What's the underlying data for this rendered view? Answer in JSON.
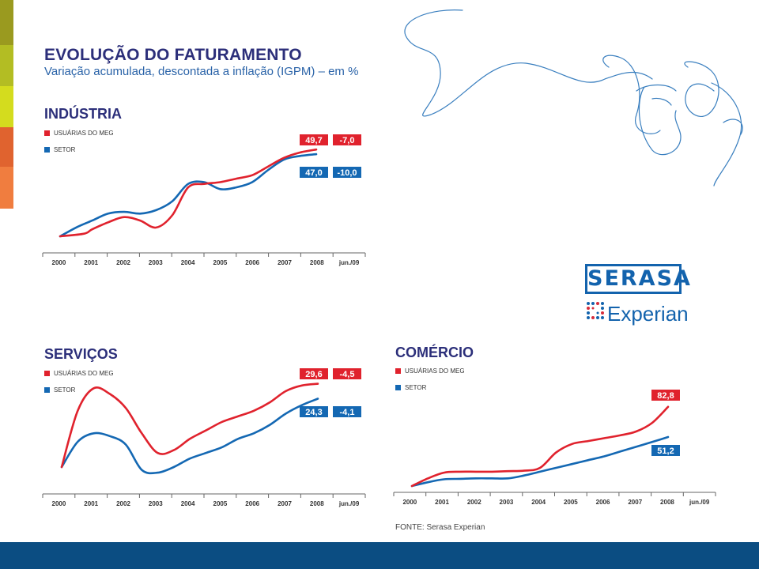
{
  "title": "EVOLUÇÃO DO FATURAMENTO",
  "subtitle": "Variação acumulada, descontada a inflação (IGPM) – em %",
  "source": "FONTE: Serasa Experian",
  "logo": {
    "brand_top": "SERASA",
    "brand_bottom": "Experian"
  },
  "colors": {
    "red": "#e0222d",
    "blue": "#1468b3",
    "title": "#2c2f7a",
    "subtitle": "#2a63a8",
    "footer": "#0b4d82"
  },
  "stripe_colors": [
    "#9a9a1f",
    "#b3bd23",
    "#d4dc1e",
    "#e0632f",
    "#f07d3f"
  ],
  "chart_data": [
    {
      "id": "industria",
      "type": "line",
      "title": "INDÚSTRIA",
      "categories": [
        "2000",
        "2001",
        "2002",
        "2003",
        "2004",
        "2005",
        "2006",
        "2007",
        "2008",
        "jun./09"
      ],
      "series": [
        {
          "name": "USUÁRIAS DO MEG",
          "color": "#e0222d",
          "x": [
            2000,
            2000.75,
            2001,
            2001.5,
            2002,
            2002.5,
            2003,
            2003.5,
            2004,
            2004.5,
            2005,
            2005.5,
            2006,
            2006.5,
            2007,
            2007.5,
            2008
          ],
          "values": [
            0,
            1.5,
            4,
            8,
            11,
            9,
            5,
            12,
            28,
            30,
            31,
            33,
            35,
            40,
            45,
            48,
            49.7
          ],
          "label": "49,7",
          "change": "-7,0"
        },
        {
          "name": "SETOR",
          "color": "#1468b3",
          "x": [
            2000,
            2000.5,
            2001,
            2001.5,
            2002,
            2002.5,
            2003,
            2003.5,
            2004,
            2004.5,
            2005,
            2005.5,
            2006,
            2006.5,
            2007,
            2007.5,
            2008
          ],
          "values": [
            0,
            5,
            9,
            13,
            14,
            13,
            15,
            20,
            30,
            31,
            27,
            28,
            31,
            38,
            44,
            46,
            47.0
          ],
          "label": "47,0",
          "change": "-10,0"
        }
      ]
    },
    {
      "id": "servicos",
      "type": "line",
      "title": "SERVIÇOS",
      "categories": [
        "2000",
        "2001",
        "2002",
        "2003",
        "2004",
        "2005",
        "2006",
        "2007",
        "2008",
        "jun./09"
      ],
      "series": [
        {
          "name": "USUÁRIAS DO MEG",
          "color": "#e0222d",
          "x": [
            2000,
            2000.5,
            2001,
            2001.5,
            2002,
            2002.5,
            2003,
            2003.5,
            2004,
            2004.5,
            2005,
            2005.5,
            2006,
            2006.5,
            2007,
            2007.5,
            2008
          ],
          "values": [
            0,
            20,
            28,
            26,
            21,
            12,
            5,
            6,
            10,
            13,
            16,
            18,
            20,
            23,
            27,
            29,
            29.6
          ],
          "label": "29,6",
          "change": "-4,5"
        },
        {
          "name": "SETOR",
          "color": "#1468b3",
          "x": [
            2000,
            2000.5,
            2001,
            2001.5,
            2002,
            2002.5,
            2003,
            2003.5,
            2004,
            2004.5,
            2005,
            2005.5,
            2006,
            2006.5,
            2007,
            2007.5,
            2008
          ],
          "values": [
            0,
            9,
            12,
            11,
            8,
            -1,
            -2,
            0,
            3,
            5,
            7,
            10,
            12,
            15,
            19,
            22,
            24.3
          ],
          "label": "24,3",
          "change": "-4,1"
        }
      ]
    },
    {
      "id": "comercio",
      "type": "line",
      "title": "COMÉRCIO",
      "categories": [
        "2000",
        "2001",
        "2002",
        "2003",
        "2004",
        "2005",
        "2006",
        "2007",
        "2008",
        "jun./09"
      ],
      "series": [
        {
          "name": "USUÁRIAS DO MEG",
          "color": "#e0222d",
          "x": [
            2000,
            2000.5,
            2001,
            2001.5,
            2002,
            2002.5,
            2003,
            2003.5,
            2004,
            2004.5,
            2005,
            2005.5,
            2006,
            2006.5,
            2007,
            2007.5,
            2008
          ],
          "values": [
            0,
            8,
            14,
            15,
            15,
            15,
            15.5,
            16,
            19,
            35,
            44,
            47,
            50,
            53,
            57,
            66,
            82.8
          ],
          "label": "82,8"
        },
        {
          "name": "SETOR",
          "color": "#1468b3",
          "x": [
            2000,
            2000.5,
            2001,
            2001.5,
            2002,
            2002.5,
            2003,
            2003.5,
            2004,
            2004.5,
            2005,
            2005.5,
            2006,
            2006.5,
            2007,
            2007.5,
            2008
          ],
          "values": [
            0,
            4,
            7,
            7.5,
            8,
            8,
            8,
            11,
            15,
            19,
            23,
            27,
            31,
            36,
            41,
            46,
            51.2
          ],
          "label": "51,2"
        }
      ]
    }
  ]
}
